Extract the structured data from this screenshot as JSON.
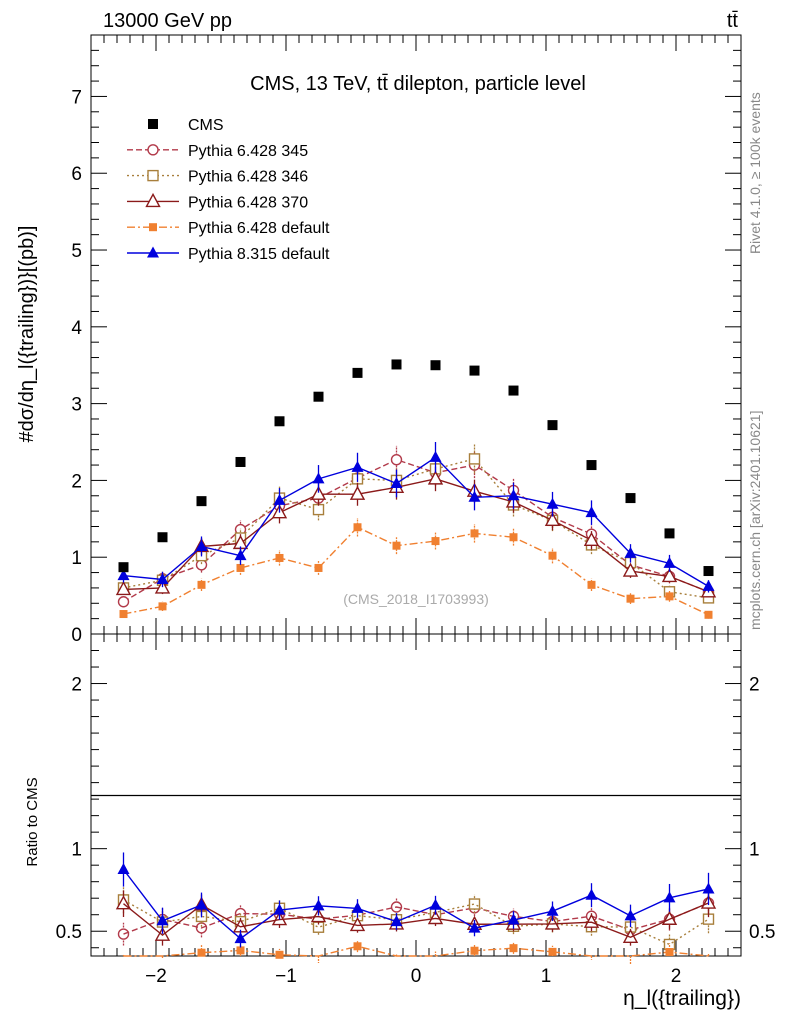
{
  "header": {
    "left": "13000 GeV pp",
    "right": "tt̄"
  },
  "side_labels": {
    "rivet": "Rivet 4.1.0, ≥ 100k events",
    "mcplots": "mcplots.cern.ch [arXiv:2401.10621]"
  },
  "chart_data": {
    "type": "scatter",
    "title": "CMS, 13 TeV, tt̄ dilepton, particle level",
    "watermark": "(CMS_2018_I1703993)",
    "xlabel": "η_l({trailing})",
    "ylabel": "#dσ/dη_l({trailing})}[(pb)]",
    "ratio_ylabel": "Ratio to CMS",
    "xlim": [
      -2.5,
      2.5
    ],
    "ylim": [
      0,
      7.8
    ],
    "ratio_ylim": [
      0.35,
      2.3
    ],
    "x_ticks": [
      -2,
      -1,
      0,
      1,
      2
    ],
    "x_tick_labels": [
      "−2",
      "−1",
      "0",
      "1",
      "2"
    ],
    "y_ticks": [
      0,
      1,
      2,
      3,
      4,
      5,
      6,
      7
    ],
    "y_tick_labels": [
      "0",
      "1",
      "2",
      "3",
      "4",
      "5",
      "6",
      "7"
    ],
    "ratio_ticks": [
      0.5,
      1,
      2
    ],
    "ratio_tick_labels": [
      "0.5",
      "1",
      "2"
    ],
    "x": [
      -2.25,
      -1.95,
      -1.65,
      -1.35,
      -1.05,
      -0.75,
      -0.45,
      -0.15,
      0.15,
      0.45,
      0.75,
      1.05,
      1.35,
      1.65,
      1.95,
      2.25
    ],
    "data": {
      "name": "CMS",
      "values": [
        0.87,
        1.26,
        1.73,
        2.24,
        2.77,
        3.09,
        3.4,
        3.51,
        3.5,
        3.43,
        3.17,
        2.72,
        2.2,
        1.77,
        1.31,
        0.82
      ]
    },
    "series": [
      {
        "name": "Pythia 6.428 345",
        "color": "#b23a4a",
        "dash": "6,3",
        "marker": "circle-open",
        "values": [
          0.42,
          0.72,
          0.9,
          1.36,
          1.67,
          1.77,
          2.03,
          2.27,
          2.1,
          2.2,
          1.87,
          1.52,
          1.3,
          0.9,
          0.75,
          0.55
        ],
        "errors": [
          0.06,
          0.09,
          0.1,
          0.12,
          0.14,
          0.15,
          0.16,
          0.18,
          0.17,
          0.17,
          0.15,
          0.14,
          0.12,
          0.1,
          0.09,
          0.07
        ]
      },
      {
        "name": "Pythia 6.428 346",
        "color": "#a87f3c",
        "dash": "2,3",
        "marker": "square-open",
        "values": [
          0.6,
          0.7,
          1.02,
          1.25,
          1.77,
          1.62,
          2.02,
          2.0,
          2.15,
          2.28,
          1.68,
          1.48,
          1.16,
          0.93,
          0.55,
          0.47
        ],
        "errors": [
          0.07,
          0.09,
          0.11,
          0.12,
          0.15,
          0.14,
          0.16,
          0.16,
          0.18,
          0.19,
          0.15,
          0.14,
          0.12,
          0.1,
          0.08,
          0.07
        ]
      },
      {
        "name": "Pythia 6.428 370",
        "color": "#8b1a1a",
        "dash": "",
        "marker": "triangle-open",
        "values": [
          0.58,
          0.6,
          1.14,
          1.18,
          1.58,
          1.82,
          1.82,
          1.91,
          2.02,
          1.86,
          1.72,
          1.48,
          1.22,
          0.82,
          0.75,
          0.55
        ],
        "errors": [
          0.07,
          0.08,
          0.11,
          0.12,
          0.14,
          0.15,
          0.15,
          0.16,
          0.16,
          0.15,
          0.14,
          0.13,
          0.12,
          0.09,
          0.08,
          0.07
        ]
      },
      {
        "name": "Pythia 6.428 default",
        "color": "#f08030",
        "dash": "8,3,2,3",
        "marker": "square-filled",
        "values": [
          0.26,
          0.36,
          0.64,
          0.86,
          0.99,
          0.86,
          1.39,
          1.15,
          1.21,
          1.31,
          1.26,
          1.02,
          0.64,
          0.46,
          0.49,
          0.25
        ],
        "errors": [
          0.05,
          0.06,
          0.08,
          0.09,
          0.1,
          0.09,
          0.12,
          0.11,
          0.11,
          0.12,
          0.11,
          0.1,
          0.08,
          0.07,
          0.07,
          0.05
        ]
      },
      {
        "name": "Pythia 8.315 default",
        "color": "#0000dd",
        "dash": "",
        "marker": "triangle-filled",
        "values": [
          0.76,
          0.71,
          1.14,
          1.02,
          1.74,
          2.02,
          2.17,
          1.96,
          2.3,
          1.78,
          1.8,
          1.69,
          1.58,
          1.05,
          0.92,
          0.62
        ],
        "errors": [
          0.09,
          0.1,
          0.13,
          0.12,
          0.16,
          0.18,
          0.19,
          0.18,
          0.2,
          0.17,
          0.17,
          0.16,
          0.16,
          0.12,
          0.11,
          0.08
        ]
      }
    ]
  }
}
